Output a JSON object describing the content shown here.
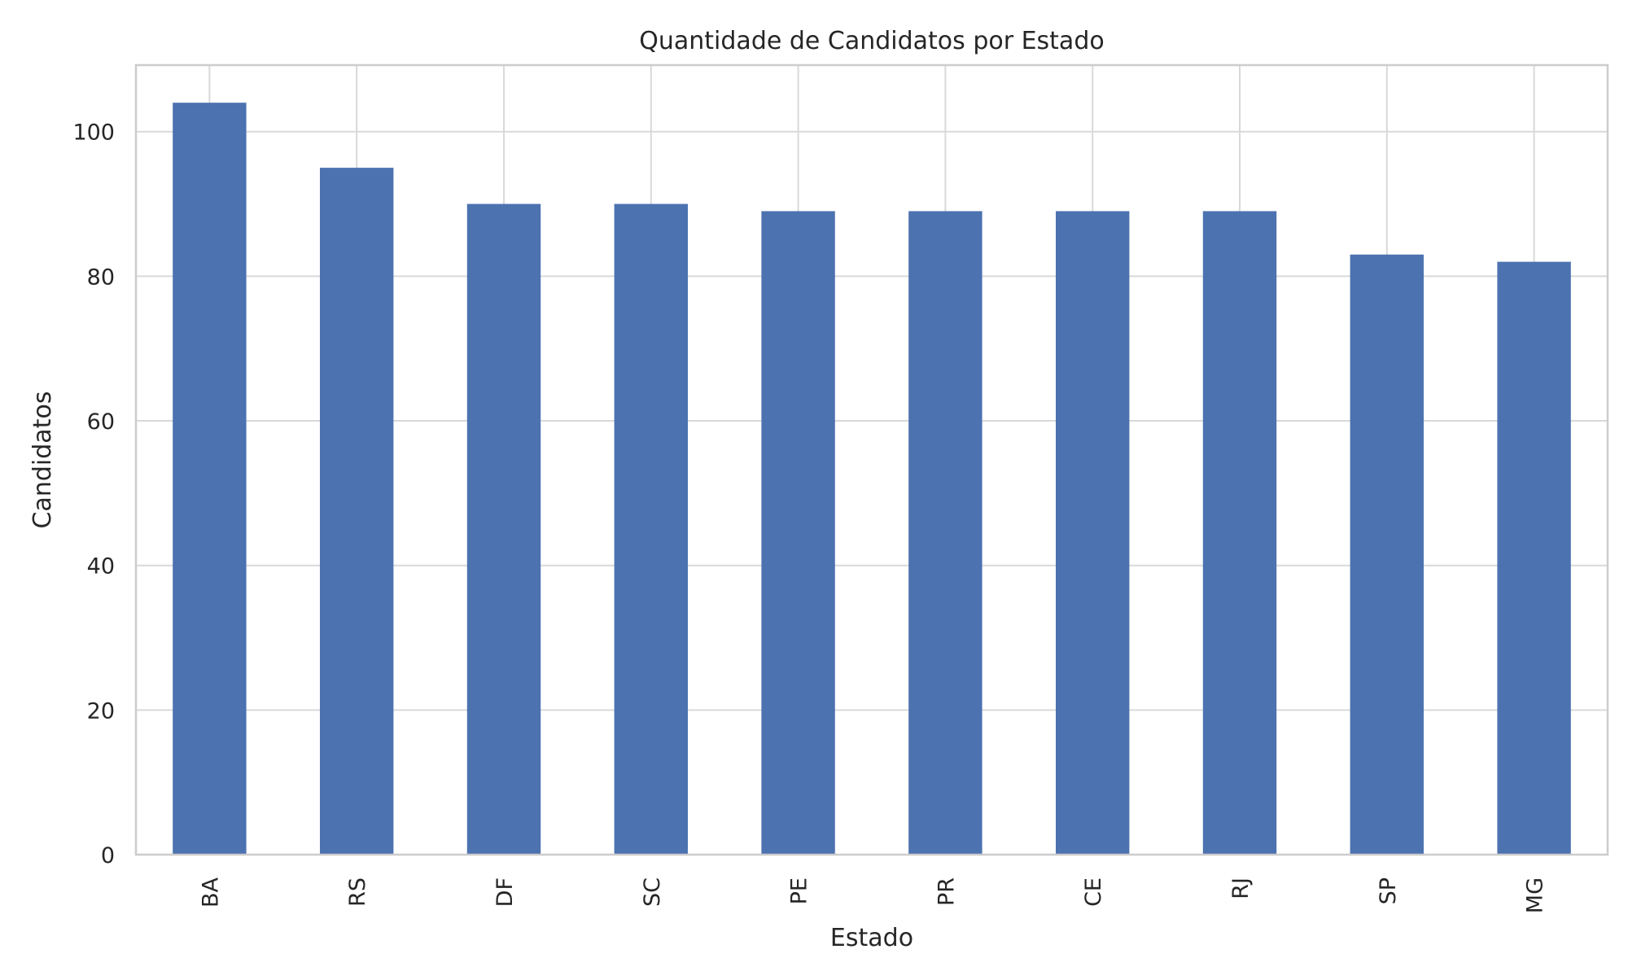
{
  "chart_data": {
    "type": "bar",
    "title": "Quantidade de Candidatos por Estado",
    "xlabel": "Estado",
    "ylabel": "Candidatos",
    "categories": [
      "BA",
      "RS",
      "DF",
      "SC",
      "PE",
      "PR",
      "CE",
      "RJ",
      "SP",
      "MG"
    ],
    "values": [
      104,
      95,
      90,
      90,
      89,
      89,
      89,
      89,
      83,
      82
    ],
    "ylim": [
      0,
      109.2
    ],
    "yticks": [
      0,
      20,
      40,
      60,
      80,
      100
    ],
    "grid": true,
    "legend": "none",
    "bar_color": "#4c72b0",
    "grid_color": "#d9d9d9",
    "frame_color": "#cccccc"
  }
}
